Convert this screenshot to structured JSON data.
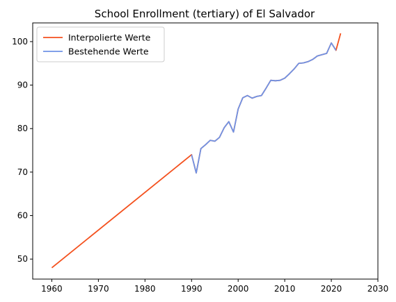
{
  "chart_data": {
    "type": "line",
    "title": "School Enrollment (tertiary) of El Salvador",
    "xlabel": "",
    "ylabel": "",
    "xlim": [
      1955.9,
      2030
    ],
    "ylim": [
      45.4,
      104.3
    ],
    "x_ticks": [
      1960,
      1970,
      1980,
      1990,
      2000,
      2010,
      2020,
      2030
    ],
    "y_ticks": [
      50,
      60,
      70,
      80,
      90,
      100
    ],
    "grid": false,
    "legend_position": "top-left",
    "series": [
      {
        "name": "Interpolierte Werte",
        "color": "#f4511e",
        "points": [
          [
            1960,
            48.0
          ],
          [
            1990,
            74.0
          ],
          [
            1991,
            69.8
          ],
          [
            1992,
            75.4
          ],
          [
            1993,
            76.3
          ],
          [
            1994,
            77.3
          ],
          [
            1995,
            77.1
          ],
          [
            1996,
            78.0
          ],
          [
            1997,
            80.2
          ],
          [
            1998,
            81.6
          ],
          [
            1999,
            79.2
          ],
          [
            2000,
            84.5
          ],
          [
            2001,
            87.1
          ],
          [
            2002,
            87.6
          ],
          [
            2003,
            87.0
          ],
          [
            2004,
            87.4
          ],
          [
            2005,
            87.6
          ],
          [
            2006,
            89.3
          ],
          [
            2007,
            91.1
          ],
          [
            2008,
            91.0
          ],
          [
            2009,
            91.1
          ],
          [
            2010,
            91.6
          ],
          [
            2011,
            92.6
          ],
          [
            2012,
            93.7
          ],
          [
            2013,
            95.0
          ],
          [
            2014,
            95.1
          ],
          [
            2015,
            95.4
          ],
          [
            2016,
            95.9
          ],
          [
            2017,
            96.7
          ],
          [
            2018,
            97.0
          ],
          [
            2019,
            97.3
          ],
          [
            2020,
            99.7
          ],
          [
            2021,
            98.0
          ],
          [
            2022,
            101.9
          ]
        ]
      },
      {
        "name": "Bestehende Werte",
        "color": "#6f93e6",
        "points": [
          [
            1990,
            74.0
          ],
          [
            1991,
            69.8
          ],
          [
            1992,
            75.4
          ],
          [
            1993,
            76.3
          ],
          [
            1994,
            77.3
          ],
          [
            1995,
            77.1
          ],
          [
            1996,
            78.0
          ],
          [
            1997,
            80.2
          ],
          [
            1998,
            81.6
          ],
          [
            1999,
            79.2
          ],
          [
            2000,
            84.5
          ],
          [
            2001,
            87.1
          ],
          [
            2002,
            87.6
          ],
          [
            2003,
            87.0
          ],
          [
            2004,
            87.4
          ],
          [
            2005,
            87.6
          ],
          [
            2006,
            89.3
          ],
          [
            2007,
            91.1
          ],
          [
            2008,
            91.0
          ],
          [
            2009,
            91.1
          ],
          [
            2010,
            91.6
          ],
          [
            2011,
            92.6
          ],
          [
            2012,
            93.7
          ],
          [
            2013,
            95.0
          ],
          [
            2014,
            95.1
          ],
          [
            2015,
            95.4
          ],
          [
            2016,
            95.9
          ],
          [
            2017,
            96.7
          ],
          [
            2018,
            97.0
          ],
          [
            2019,
            97.3
          ],
          [
            2020,
            99.7
          ],
          [
            2021,
            98.0
          ]
        ]
      }
    ]
  }
}
